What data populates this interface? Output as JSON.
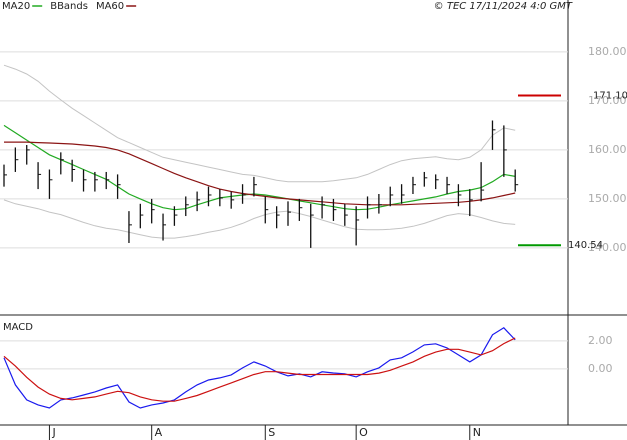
{
  "chart_data": [
    {
      "type": "ohlc",
      "credit": "© TEC 17/11/2024 4:0 GMT",
      "categories": [
        null,
        null,
        null,
        null,
        "J",
        null,
        null,
        null,
        null,
        null,
        null,
        null,
        null,
        "A",
        null,
        null,
        null,
        null,
        null,
        null,
        null,
        null,
        null,
        "S",
        null,
        null,
        null,
        null,
        null,
        null,
        null,
        "O",
        null,
        null,
        null,
        null,
        null,
        null,
        null,
        null,
        null,
        "N",
        null,
        null,
        null,
        null
      ],
      "bars": {
        "color": "#111",
        "high": [
          157,
          160.5,
          161,
          157.5,
          156,
          159.5,
          158,
          156,
          155.5,
          155.5,
          155,
          147.5,
          149,
          150,
          147,
          148.5,
          150.5,
          151.5,
          152.5,
          152,
          151.5,
          153,
          154.5,
          150.5,
          148.5,
          149.5,
          150,
          149,
          150.5,
          150,
          149,
          148.5,
          150.5,
          151,
          152.5,
          153,
          154.5,
          155.5,
          155,
          154.5,
          153,
          152,
          157.5,
          166,
          165,
          156
        ],
        "low": [
          152.5,
          155.5,
          157,
          152,
          150,
          155,
          153.5,
          151.5,
          151.5,
          152,
          150,
          141,
          144,
          145,
          141.5,
          144.5,
          146.5,
          147.5,
          148.5,
          148.5,
          148,
          149,
          150.5,
          145,
          144,
          144.5,
          145.5,
          140,
          146,
          145.5,
          144.5,
          140.5,
          146,
          147,
          148.5,
          149,
          151,
          152.5,
          152,
          151,
          148.5,
          146.5,
          149.5,
          160,
          154.5,
          151.5
        ],
        "close": [
          154.9,
          158,
          160,
          155,
          153.9,
          158,
          156,
          153.9,
          153.9,
          153.9,
          152.9,
          144.7,
          146.7,
          147.8,
          144.7,
          146.7,
          148.8,
          149.8,
          150.8,
          150.2,
          149.8,
          150.8,
          152.9,
          147.8,
          146.7,
          147.3,
          148.2,
          146.7,
          148.8,
          147.8,
          146.7,
          145.7,
          148.8,
          148.8,
          150.8,
          150.8,
          152.9,
          154.3,
          153.9,
          152.9,
          150.8,
          149.8,
          151.8,
          164.1,
          160,
          152.9
        ]
      },
      "series": [
        {
          "name": "MA20",
          "color": "#22aa22",
          "values": [
            165,
            163.5,
            162,
            160.5,
            159,
            158,
            157,
            156,
            155,
            154,
            152.5,
            151,
            150,
            149,
            148.2,
            147.8,
            148,
            148.8,
            149.5,
            150.2,
            150.5,
            150.8,
            151,
            150.8,
            150.4,
            150,
            149.6,
            149.2,
            148.8,
            148.4,
            148,
            147.8,
            147.9,
            148.3,
            148.8,
            149.2,
            149.6,
            150,
            150.4,
            151,
            151.5,
            151.8,
            152.3,
            153.5,
            155,
            154.6
          ]
        },
        {
          "name": "BBands",
          "color": "#c4c4c4",
          "upper": [
            177.3,
            176.5,
            175.5,
            174,
            172,
            170.2,
            168.5,
            167,
            165.5,
            164,
            162.5,
            161.5,
            160.5,
            159.5,
            158.5,
            158,
            157.5,
            157,
            156.5,
            156,
            155.5,
            155,
            154.8,
            154.3,
            153.8,
            153.5,
            153.5,
            153.5,
            153.5,
            153.7,
            154,
            154.3,
            155,
            156,
            157,
            157.8,
            158.2,
            158.4,
            158.6,
            158.2,
            158,
            158.5,
            160,
            163,
            164.5,
            164
          ],
          "lower": [
            149.8,
            149,
            148.5,
            148,
            147.3,
            146.8,
            146,
            145.2,
            144.5,
            144,
            143.7,
            143.2,
            142.7,
            142.2,
            142,
            142,
            142.3,
            142.7,
            143.2,
            143.6,
            144.2,
            145,
            146,
            146.8,
            147.3,
            147.5,
            147,
            146.4,
            145.7,
            145,
            144.3,
            143.8,
            143.7,
            143.7,
            143.8,
            144,
            144.4,
            145,
            145.8,
            146.6,
            147,
            146.8,
            146.2,
            145.5,
            145,
            144.8
          ]
        },
        {
          "name": "MA60",
          "color": "#8b1414",
          "values": [
            161.6,
            161.6,
            161.6,
            161.5,
            161.4,
            161.3,
            161.2,
            161,
            160.8,
            160.5,
            160,
            159.2,
            158.2,
            157.2,
            156.2,
            155.2,
            154.3,
            153.5,
            152.7,
            152,
            151.5,
            151.1,
            150.8,
            150.5,
            150.2,
            150,
            149.8,
            149.6,
            149.4,
            149.2,
            149,
            148.9,
            148.8,
            148.8,
            148.8,
            148.8,
            148.9,
            149,
            149.1,
            149.2,
            149.3,
            149.5,
            149.8,
            150.2,
            150.7,
            151.2
          ]
        }
      ],
      "annotations": [
        {
          "label": "171.10",
          "value": 171.1,
          "color": "#cc0000"
        },
        {
          "label": "140.54",
          "value": 140.54,
          "color": "#009900"
        }
      ],
      "ylim": [
        126.3,
        190.6
      ],
      "yticks": [
        {
          "value": 140,
          "label": "140.00"
        },
        {
          "value": 150,
          "label": "150.00"
        },
        {
          "value": 160,
          "label": "160.00"
        },
        {
          "value": 170,
          "label": "170.00"
        },
        {
          "value": 180,
          "label": "180.00"
        }
      ],
      "grid": true
    },
    {
      "type": "line",
      "title": "MACD",
      "series": [
        {
          "color": "#1a1aee",
          "values": [
            0.79,
            -1.14,
            -2.21,
            -2.57,
            -2.79,
            -2.21,
            -2.07,
            -1.86,
            -1.64,
            -1.36,
            -1.14,
            -2.36,
            -2.79,
            -2.57,
            -2.43,
            -2.21,
            -1.64,
            -1.14,
            -0.79,
            -0.64,
            -0.43,
            0.07,
            0.5,
            0.21,
            -0.21,
            -0.5,
            -0.36,
            -0.57,
            -0.21,
            -0.29,
            -0.36,
            -0.57,
            -0.21,
            0.07,
            0.64,
            0.79,
            1.21,
            1.71,
            1.79,
            1.5,
            1.0,
            0.5,
            1.0,
            2.43,
            2.93,
            2.07
          ]
        },
        {
          "color": "#cc1111",
          "values": [
            0.9,
            0.2,
            -0.6,
            -1.3,
            -1.8,
            -2.1,
            -2.2,
            -2.1,
            -2.0,
            -1.8,
            -1.6,
            -1.7,
            -2.0,
            -2.2,
            -2.3,
            -2.3,
            -2.1,
            -1.9,
            -1.6,
            -1.3,
            -1.0,
            -0.7,
            -0.4,
            -0.2,
            -0.2,
            -0.3,
            -0.4,
            -0.4,
            -0.4,
            -0.4,
            -0.4,
            -0.4,
            -0.4,
            -0.3,
            -0.1,
            0.2,
            0.5,
            0.9,
            1.2,
            1.4,
            1.4,
            1.2,
            1.0,
            1.3,
            1.8,
            2.2
          ]
        }
      ],
      "ylim": [
        -4,
        3.7
      ],
      "yticks": [
        {
          "value": 0,
          "label": "0.00"
        },
        {
          "value": 2,
          "label": "2.00"
        }
      ],
      "grid": true
    }
  ]
}
